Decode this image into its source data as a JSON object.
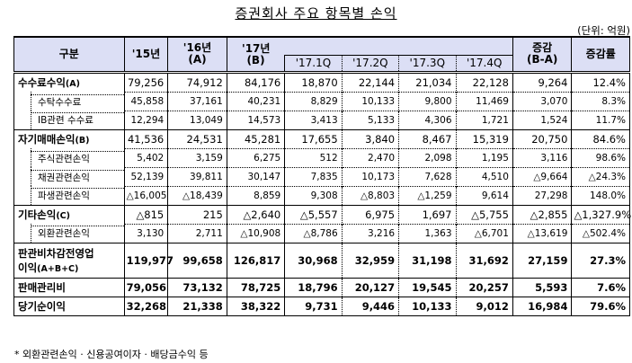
{
  "title": "증권회사 주요 항목별 손익",
  "unit": "(단위: 억원)",
  "header": {
    "category": "구분",
    "y15": "'15년",
    "y16": "'16년",
    "y16_sub": "(A)",
    "y17": "'17년",
    "y17_sub": "(B)",
    "q1": "'17.1Q",
    "q2": "'17.2Q",
    "q3": "'17.3Q",
    "q4": "'17.4Q",
    "change": "증감",
    "change_sub": "(B-A)",
    "rate": "증감률"
  },
  "rows": [
    {
      "label": "수수료수익",
      "suffix": "(A)",
      "type": "major",
      "values": [
        "79,256",
        "74,912",
        "84,176",
        "18,870",
        "22,144",
        "21,034",
        "22,128",
        "9,264",
        "12.4%"
      ]
    },
    {
      "label": "수탁수수료",
      "type": "sub",
      "values": [
        "45,858",
        "37,161",
        "40,231",
        "8,829",
        "10,133",
        "9,800",
        "11,469",
        "3,070",
        "8.3%"
      ]
    },
    {
      "label": "IB관련 수수료",
      "type": "sub",
      "values": [
        "12,294",
        "13,049",
        "14,573",
        "3,413",
        "5,133",
        "4,306",
        "1,721",
        "1,524",
        "11.7%"
      ]
    },
    {
      "label": "자기매매손익",
      "suffix": "(B)",
      "type": "major",
      "values": [
        "41,536",
        "24,531",
        "45,281",
        "17,655",
        "3,840",
        "8,467",
        "15,319",
        "20,750",
        "84.6%"
      ]
    },
    {
      "label": "주식관련손익",
      "type": "sub",
      "values": [
        "5,402",
        "3,159",
        "6,275",
        "512",
        "2,470",
        "2,098",
        "1,195",
        "3,116",
        "98.6%"
      ]
    },
    {
      "label": "채권관련손익",
      "type": "sub",
      "values": [
        "52,139",
        "39,811",
        "30,147",
        "7,835",
        "10,173",
        "7,628",
        "4,510",
        "△9,664",
        "△24.3%"
      ]
    },
    {
      "label": "파생관련손익",
      "type": "sub",
      "values": [
        "△16,005",
        "△18,439",
        "8,859",
        "9,308",
        "△8,803",
        "△1,259",
        "9,614",
        "27,298",
        "148.0%"
      ]
    },
    {
      "label": "기타손익",
      "suffix": "(C)",
      "type": "major",
      "values": [
        "△815",
        "215",
        "△2,640",
        "△5,557",
        "6,975",
        "1,697",
        "△5,755",
        "△2,855",
        "△1,327.9%"
      ]
    },
    {
      "label": "외환관련손익",
      "type": "sub",
      "values": [
        "3,130",
        "2,711",
        "△10,908",
        "△8,786",
        "3,216",
        "1,363",
        "△6,701",
        "△13,619",
        "△502.4%"
      ]
    },
    {
      "label": "판관비차감전영업",
      "label2": "이익",
      "suffix": "(A+B+C)",
      "type": "bold",
      "values": [
        "119,977",
        "99,658",
        "126,817",
        "30,968",
        "32,959",
        "31,198",
        "31,692",
        "27,159",
        "27.3%"
      ]
    },
    {
      "label": "판매관리비",
      "type": "bold",
      "values": [
        "79,056",
        "73,132",
        "78,725",
        "18,796",
        "20,127",
        "19,545",
        "20,257",
        "5,593",
        "7.6%"
      ]
    },
    {
      "label": "당기순이익",
      "type": "bold",
      "values": [
        "32,268",
        "21,338",
        "38,322",
        "9,731",
        "9,446",
        "10,133",
        "9,012",
        "16,984",
        "79.6%"
      ]
    }
  ],
  "footnote": "*  외환관련손익 · 신용공여이자 · 배당금수익  등"
}
